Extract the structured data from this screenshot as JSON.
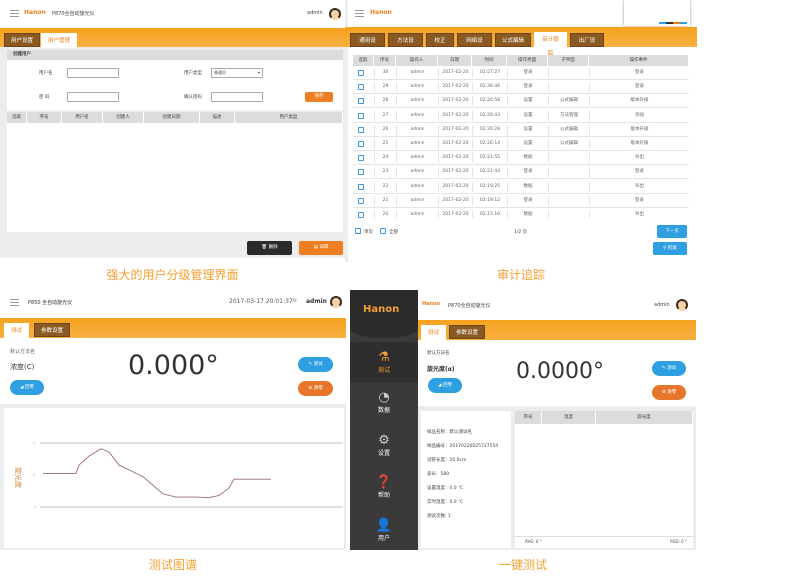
{
  "user_mgmt": {
    "app_title": "P870全自动旋光仪",
    "user": "admin",
    "logo": "Hanon",
    "tabs": [
      {
        "label": "用户设置",
        "active": false
      },
      {
        "label": "用户管理",
        "active": true
      }
    ],
    "section_title": "创建用户",
    "form": {
      "username_label": "用户名",
      "username_value": "",
      "usertype_label": "用户类型",
      "usertype_value": "普通员",
      "password_label": "密 码",
      "password_value": "",
      "confirm_label": "确认密码",
      "confirm_value": "",
      "save_label": "保存"
    },
    "table_headers": [
      "选取",
      "序号",
      "用户名",
      "创建人",
      "创建日期",
      "描述",
      "用户类型"
    ],
    "delete_label": "删除",
    "detail_label": "详细",
    "caption": "强大的用户分级管理界面"
  },
  "audit": {
    "logo": "Hanon",
    "tabs": [
      {
        "label": "通用设置"
      },
      {
        "label": "方法设置"
      },
      {
        "label": "校正"
      },
      {
        "label": "网络设置"
      },
      {
        "label": "公式编辑"
      },
      {
        "label": "审计跟踪",
        "active": true
      },
      {
        "label": "出厂设置"
      }
    ],
    "table_headers": [
      "选取",
      "序号",
      "操作人",
      "日期",
      "时间",
      "操作界面",
      "子界面",
      "操作事件"
    ],
    "rows": [
      [
        "30",
        "admin",
        "2017-02-20",
        "02:57:27",
        "登录",
        "",
        "登录"
      ],
      [
        "29",
        "admin",
        "2017-02-20",
        "02:36:46",
        "登录",
        "",
        "登录"
      ],
      [
        "28",
        "admin",
        "2017-02-20",
        "02:26:58",
        "设置",
        "公式编辑",
        "版本升级"
      ],
      [
        "27",
        "admin",
        "2017-02-20",
        "02:26:43",
        "设置",
        "方法管理",
        "添加"
      ],
      [
        "26",
        "admin",
        "2017-02-20",
        "02:26:28",
        "设置",
        "公式编辑",
        "版本升级"
      ],
      [
        "25",
        "admin",
        "2017-02-20",
        "02:26:14",
        "设置",
        "公式编辑",
        "版本升级"
      ],
      [
        "24",
        "admin",
        "2017-02-20",
        "02:21:55",
        "数据",
        "",
        "导出"
      ],
      [
        "23",
        "admin",
        "2017-02-20",
        "02:21:44",
        "登录",
        "",
        "登录"
      ],
      [
        "22",
        "admin",
        "2017-02-20",
        "02:19:25",
        "数据",
        "",
        "导出"
      ],
      [
        "21",
        "admin",
        "2017-02-20",
        "02:19:12",
        "登录",
        "",
        "登录"
      ],
      [
        "20",
        "admin",
        "2017-02-20",
        "02:15:10",
        "数据",
        "",
        "导出"
      ]
    ],
    "single_page_label": "单页",
    "all_label": "全部",
    "page_indicator": "1/2 页",
    "next_label": "下一页",
    "search_label": "检索",
    "caption": "审计追踪"
  },
  "test_chart": {
    "app_title": "P850 全自动旋光仪",
    "datetime": "2017-03-17 20:01:37",
    "user": "admin",
    "tabs": [
      {
        "label": "测试",
        "active": true
      },
      {
        "label": "参数设置"
      }
    ],
    "method_name": "默认方法名",
    "measure_label": "浓度(C)",
    "reading": "0.000°",
    "zero_label": "回零",
    "test_label": "测试",
    "clear_label": "清零",
    "caption": "测试图谱"
  },
  "chart_data": {
    "type": "line",
    "ylabel": "旋光度",
    "title": "",
    "xlabel": "",
    "ylim": [
      -1,
      1
    ],
    "yticks": [
      1,
      0,
      -1
    ],
    "xlim": [
      0,
      307
    ],
    "grid": "horizontal",
    "series": [
      {
        "color": "#9b6b6b",
        "x": [
          7,
          40,
          43,
          53,
          65,
          73,
          83,
          107,
          127,
          140,
          160,
          173,
          183,
          193,
          198,
          235
        ],
        "y": [
          0.05,
          0.05,
          0.31,
          0.59,
          0.82,
          0.72,
          0.31,
          -0.05,
          -0.59,
          -0.69,
          -0.69,
          -0.71,
          -0.64,
          -0.41,
          -0.13,
          -0.13
        ]
      }
    ]
  },
  "one_key": {
    "logo": "Hanon",
    "app_title": "P870全自动旋光仪",
    "user": "admin",
    "sidebar": [
      {
        "label": "测试",
        "icon": "flask-icon",
        "active": true
      },
      {
        "label": "数据",
        "icon": "pie-chart-icon"
      },
      {
        "label": "设置",
        "icon": "gear-icon"
      },
      {
        "label": "帮助",
        "icon": "help-icon"
      },
      {
        "label": "用户",
        "icon": "user-icon"
      }
    ],
    "tabs": [
      {
        "label": "测试",
        "active": true
      },
      {
        "label": "参数设置"
      }
    ],
    "method_name": "默认方法名",
    "measure_label": "旋光度(α)",
    "reading": "0.0000°",
    "zero_label": "回零",
    "test_label": "测试",
    "clear_label": "清零",
    "info": [
      "样品名称：默认测试名",
      "样品编号：20170220025727554",
      "试管长度：20.0cm",
      "波长：589",
      "设置温度：0.0 ℃",
      "实时温度：0.0 ℃",
      "测试次数: 1"
    ],
    "table_headers": [
      "序号",
      "温度",
      "旋光度"
    ],
    "avg": "AVG: 0 °",
    "rsd": "RSD: 0 °",
    "caption": "一键测试"
  },
  "colors": {
    "accent": "#f5a030",
    "brand_orange": "#e8801c",
    "blue": "#2e9fe0",
    "tab_brown": "#8a5a22",
    "sidebar": "#3a3a3a"
  }
}
